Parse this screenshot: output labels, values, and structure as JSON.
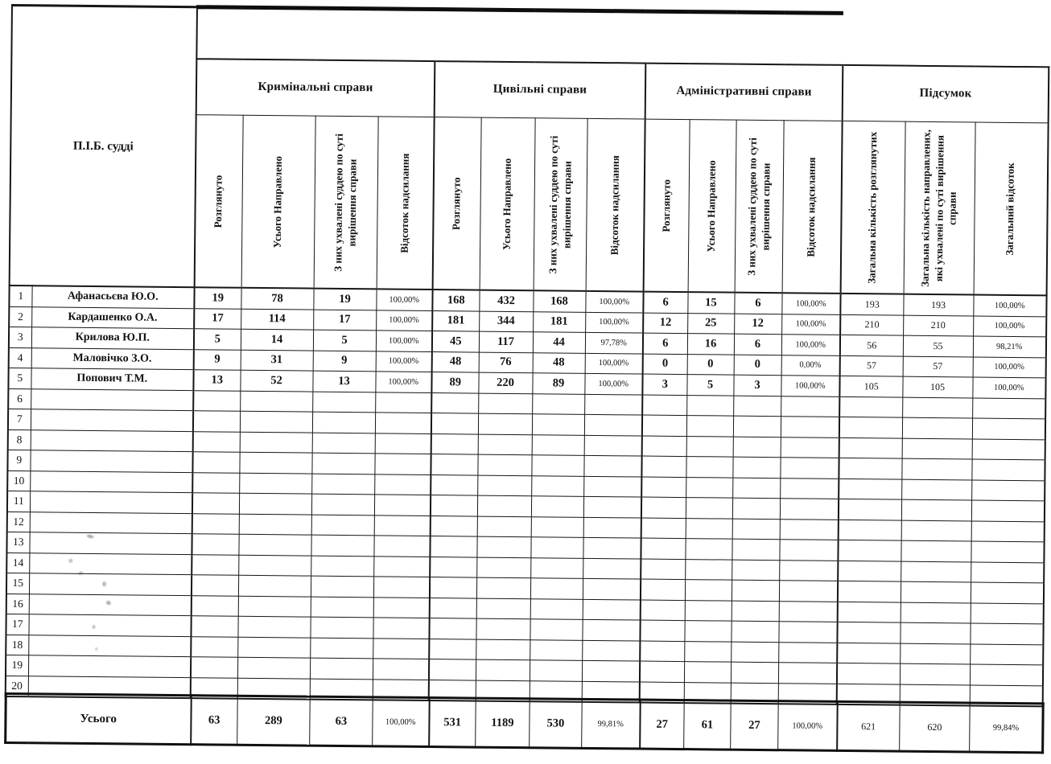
{
  "document": {
    "judge_column_header": "П.І.Б. судді",
    "groups": [
      {
        "label": "Кримінальні справи",
        "subs": [
          "Розглянуто",
          "Усього Направлено",
          "З них ухвалені суддею по суті вирішення справи",
          "Відсоток надсилання"
        ]
      },
      {
        "label": "Цивільні справи",
        "subs": [
          "Розглянуто",
          "Усього Направлено",
          "З них ухвалені суддею по суті вирішення справи",
          "Відсоток надсилання"
        ]
      },
      {
        "label": "Адміністративні справи",
        "subs": [
          "Розглянуто",
          "Усього Направлено",
          "З них ухвалені суддею по суті вирішення справи",
          "Відсоток надсилання"
        ]
      },
      {
        "label": "Підсумок",
        "subs": [
          "Загальна кількість розглянутих",
          "Загальна кількість направлених, які ухвалені по суті вирішення справи",
          "Загальний відсоток"
        ]
      }
    ],
    "rows": [
      {
        "num": "1",
        "name": "Афанасьєва Ю.О.",
        "values": [
          "19",
          "78",
          "19",
          "100,00%",
          "168",
          "432",
          "168",
          "100,00%",
          "6",
          "15",
          "6",
          "100,00%",
          "193",
          "193",
          "100,00%"
        ]
      },
      {
        "num": "2",
        "name": "Кардашенко О.А.",
        "values": [
          "17",
          "114",
          "17",
          "100,00%",
          "181",
          "344",
          "181",
          "100,00%",
          "12",
          "25",
          "12",
          "100,00%",
          "210",
          "210",
          "100,00%"
        ]
      },
      {
        "num": "3",
        "name": "Крилова Ю.П.",
        "values": [
          "5",
          "14",
          "5",
          "100,00%",
          "45",
          "117",
          "44",
          "97,78%",
          "6",
          "16",
          "6",
          "100,00%",
          "56",
          "55",
          "98,21%"
        ]
      },
      {
        "num": "4",
        "name": "Маловічко З.О.",
        "values": [
          "9",
          "31",
          "9",
          "100,00%",
          "48",
          "76",
          "48",
          "100,00%",
          "0",
          "0",
          "0",
          "0,00%",
          "57",
          "57",
          "100,00%"
        ]
      },
      {
        "num": "5",
        "name": "Попович Т.М.",
        "values": [
          "13",
          "52",
          "13",
          "100,00%",
          "89",
          "220",
          "89",
          "100,00%",
          "3",
          "5",
          "3",
          "100,00%",
          "105",
          "105",
          "100,00%"
        ]
      },
      {
        "num": "6",
        "name": "",
        "values": []
      },
      {
        "num": "7",
        "name": "",
        "values": []
      },
      {
        "num": "8",
        "name": "",
        "values": []
      },
      {
        "num": "9",
        "name": "",
        "values": []
      },
      {
        "num": "10",
        "name": "",
        "values": []
      },
      {
        "num": "11",
        "name": "",
        "values": []
      },
      {
        "num": "12",
        "name": "",
        "values": []
      },
      {
        "num": "13",
        "name": "",
        "values": []
      },
      {
        "num": "14",
        "name": "",
        "values": []
      },
      {
        "num": "15",
        "name": "",
        "values": []
      },
      {
        "num": "16",
        "name": "",
        "values": []
      },
      {
        "num": "17",
        "name": "",
        "values": []
      },
      {
        "num": "18",
        "name": "",
        "values": []
      },
      {
        "num": "19",
        "name": "",
        "values": []
      },
      {
        "num": "20",
        "name": "",
        "values": []
      }
    ],
    "total": {
      "label": "Усього",
      "values": [
        "63",
        "289",
        "63",
        "100,00%",
        "531",
        "1189",
        "530",
        "99,81%",
        "27",
        "61",
        "27",
        "100,00%",
        "621",
        "620",
        "99,84%"
      ]
    }
  }
}
